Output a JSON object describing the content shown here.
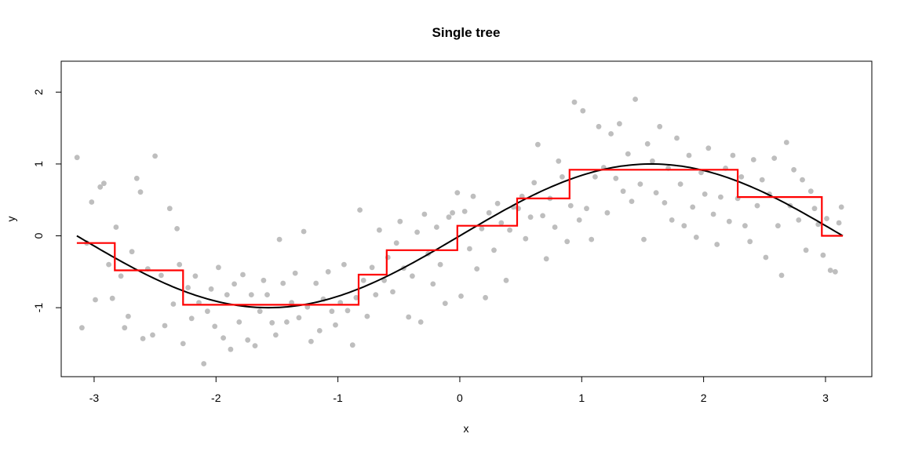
{
  "chart_data": {
    "type": "scatter",
    "title": "Single tree",
    "xlabel": "x",
    "ylabel": "y",
    "xlim": [
      -3.27,
      3.38
    ],
    "ylim": [
      -1.96,
      2.43
    ],
    "x_ticks": [
      -3,
      -2,
      -1,
      0,
      1,
      2,
      3
    ],
    "y_ticks": [
      -1,
      0,
      1,
      2
    ],
    "x_tick_labels": [
      "-3",
      "-2",
      "-1",
      "0",
      "1",
      "2",
      "3"
    ],
    "y_tick_labels": [
      "-1",
      "0",
      "1",
      "2"
    ],
    "grid": false,
    "legend": "none",
    "colors": {
      "points": "#bebebe",
      "true_function": "#000000",
      "tree_fit": "#ff0000"
    },
    "true_function": {
      "name": "",
      "type": "line",
      "expression": "sin(x)",
      "x_range": [
        -3.1416,
        3.1416
      ]
    },
    "tree_fit": {
      "type": "step",
      "breaks": [
        -3.1416,
        -2.83,
        -2.27,
        -0.83,
        -0.6,
        -0.02,
        0.47,
        0.9,
        2.28,
        2.97,
        3.1416
      ],
      "levels": [
        -0.1,
        -0.48,
        -0.96,
        -0.54,
        -0.2,
        0.14,
        0.52,
        0.92,
        0.54,
        0.0
      ]
    },
    "points": [
      [
        -3.14,
        1.09
      ],
      [
        -3.1,
        -1.28
      ],
      [
        -3.06,
        -0.1
      ],
      [
        -3.02,
        0.47
      ],
      [
        -2.99,
        -0.89
      ],
      [
        -2.95,
        0.68
      ],
      [
        -2.92,
        0.73
      ],
      [
        -2.88,
        -0.4
      ],
      [
        -2.85,
        -0.87
      ],
      [
        -2.82,
        0.12
      ],
      [
        -2.78,
        -0.56
      ],
      [
        -2.75,
        -1.28
      ],
      [
        -2.72,
        -1.12
      ],
      [
        -2.69,
        -0.22
      ],
      [
        -2.65,
        0.8
      ],
      [
        -2.62,
        0.61
      ],
      [
        -2.6,
        -1.43
      ],
      [
        -2.56,
        -0.46
      ],
      [
        -2.52,
        -1.38
      ],
      [
        -2.5,
        1.11
      ],
      [
        -2.45,
        -0.55
      ],
      [
        -2.42,
        -1.25
      ],
      [
        -2.38,
        0.38
      ],
      [
        -2.35,
        -0.95
      ],
      [
        -2.32,
        0.1
      ],
      [
        -2.3,
        -0.4
      ],
      [
        -2.27,
        -1.5
      ],
      [
        -2.23,
        -0.72
      ],
      [
        -2.2,
        -1.15
      ],
      [
        -2.17,
        -0.56
      ],
      [
        -2.14,
        -0.93
      ],
      [
        -2.1,
        -1.78
      ],
      [
        -2.07,
        -1.05
      ],
      [
        -2.04,
        -0.74
      ],
      [
        -2.01,
        -1.26
      ],
      [
        -1.98,
        -0.44
      ],
      [
        -1.94,
        -1.42
      ],
      [
        -1.91,
        -0.82
      ],
      [
        -1.88,
        -1.58
      ],
      [
        -1.85,
        -0.67
      ],
      [
        -1.81,
        -1.2
      ],
      [
        -1.78,
        -0.54
      ],
      [
        -1.74,
        -1.45
      ],
      [
        -1.71,
        -0.82
      ],
      [
        -1.68,
        -1.53
      ],
      [
        -1.64,
        -1.05
      ],
      [
        -1.61,
        -0.62
      ],
      [
        -1.58,
        -0.82
      ],
      [
        -1.54,
        -1.21
      ],
      [
        -1.51,
        -1.38
      ],
      [
        -1.48,
        -0.05
      ],
      [
        -1.45,
        -0.66
      ],
      [
        -1.42,
        -1.2
      ],
      [
        -1.38,
        -0.93
      ],
      [
        -1.35,
        -0.52
      ],
      [
        -1.32,
        -1.14
      ],
      [
        -1.28,
        0.06
      ],
      [
        -1.25,
        -0.99
      ],
      [
        -1.22,
        -1.47
      ],
      [
        -1.18,
        -0.66
      ],
      [
        -1.15,
        -1.32
      ],
      [
        -1.12,
        -0.88
      ],
      [
        -1.08,
        -0.5
      ],
      [
        -1.05,
        -1.05
      ],
      [
        -1.02,
        -1.24
      ],
      [
        -0.98,
        -0.93
      ],
      [
        -0.95,
        -0.4
      ],
      [
        -0.92,
        -1.04
      ],
      [
        -0.88,
        -1.52
      ],
      [
        -0.85,
        -0.86
      ],
      [
        -0.82,
        0.36
      ],
      [
        -0.79,
        -0.62
      ],
      [
        -0.76,
        -1.12
      ],
      [
        -0.72,
        -0.44
      ],
      [
        -0.69,
        -0.82
      ],
      [
        -0.66,
        0.08
      ],
      [
        -0.62,
        -0.62
      ],
      [
        -0.59,
        -0.3
      ],
      [
        -0.55,
        -0.78
      ],
      [
        -0.52,
        -0.1
      ],
      [
        -0.49,
        0.2
      ],
      [
        -0.46,
        -0.45
      ],
      [
        -0.42,
        -1.13
      ],
      [
        -0.39,
        -0.56
      ],
      [
        -0.35,
        0.05
      ],
      [
        -0.32,
        -1.2
      ],
      [
        -0.29,
        0.3
      ],
      [
        -0.26,
        -0.25
      ],
      [
        -0.22,
        -0.67
      ],
      [
        -0.19,
        0.12
      ],
      [
        -0.16,
        -0.4
      ],
      [
        -0.12,
        -0.94
      ],
      [
        -0.09,
        0.26
      ],
      [
        -0.06,
        0.32
      ],
      [
        -0.02,
        0.6
      ],
      [
        0.01,
        -0.84
      ],
      [
        0.04,
        0.34
      ],
      [
        0.08,
        -0.18
      ],
      [
        0.11,
        0.55
      ],
      [
        0.14,
        -0.46
      ],
      [
        0.18,
        0.1
      ],
      [
        0.21,
        -0.86
      ],
      [
        0.24,
        0.32
      ],
      [
        0.28,
        -0.2
      ],
      [
        0.31,
        0.45
      ],
      [
        0.34,
        0.18
      ],
      [
        0.38,
        -0.62
      ],
      [
        0.41,
        0.08
      ],
      [
        0.44,
        0.4
      ],
      [
        0.48,
        0.38
      ],
      [
        0.51,
        0.55
      ],
      [
        0.54,
        -0.04
      ],
      [
        0.58,
        0.26
      ],
      [
        0.61,
        0.74
      ],
      [
        0.64,
        1.27
      ],
      [
        0.68,
        0.28
      ],
      [
        0.71,
        -0.32
      ],
      [
        0.74,
        0.52
      ],
      [
        0.78,
        0.12
      ],
      [
        0.81,
        1.04
      ],
      [
        0.84,
        0.82
      ],
      [
        0.88,
        -0.08
      ],
      [
        0.91,
        0.42
      ],
      [
        0.94,
        1.86
      ],
      [
        0.98,
        0.22
      ],
      [
        1.01,
        1.74
      ],
      [
        1.04,
        0.38
      ],
      [
        1.08,
        -0.05
      ],
      [
        1.11,
        0.82
      ],
      [
        1.14,
        1.52
      ],
      [
        1.18,
        0.95
      ],
      [
        1.21,
        0.32
      ],
      [
        1.24,
        1.42
      ],
      [
        1.28,
        0.8
      ],
      [
        1.31,
        1.56
      ],
      [
        1.34,
        0.62
      ],
      [
        1.38,
        1.14
      ],
      [
        1.41,
        0.48
      ],
      [
        1.44,
        1.9
      ],
      [
        1.48,
        0.72
      ],
      [
        1.51,
        -0.05
      ],
      [
        1.54,
        1.28
      ],
      [
        1.58,
        1.04
      ],
      [
        1.61,
        0.6
      ],
      [
        1.64,
        1.52
      ],
      [
        1.68,
        0.46
      ],
      [
        1.71,
        0.94
      ],
      [
        1.74,
        0.22
      ],
      [
        1.78,
        1.36
      ],
      [
        1.81,
        0.72
      ],
      [
        1.84,
        0.14
      ],
      [
        1.88,
        1.12
      ],
      [
        1.91,
        0.4
      ],
      [
        1.94,
        -0.02
      ],
      [
        1.98,
        0.88
      ],
      [
        2.01,
        0.58
      ],
      [
        2.04,
        1.22
      ],
      [
        2.08,
        0.3
      ],
      [
        2.11,
        -0.12
      ],
      [
        2.14,
        0.54
      ],
      [
        2.18,
        0.94
      ],
      [
        2.21,
        0.2
      ],
      [
        2.24,
        1.12
      ],
      [
        2.28,
        0.52
      ],
      [
        2.31,
        0.82
      ],
      [
        2.34,
        0.14
      ],
      [
        2.38,
        -0.08
      ],
      [
        2.41,
        1.06
      ],
      [
        2.44,
        0.42
      ],
      [
        2.48,
        0.78
      ],
      [
        2.51,
        -0.3
      ],
      [
        2.54,
        0.58
      ],
      [
        2.58,
        1.08
      ],
      [
        2.61,
        0.14
      ],
      [
        2.64,
        -0.55
      ],
      [
        2.68,
        1.3
      ],
      [
        2.71,
        0.42
      ],
      [
        2.74,
        0.92
      ],
      [
        2.78,
        0.22
      ],
      [
        2.81,
        0.78
      ],
      [
        2.84,
        -0.2
      ],
      [
        2.88,
        0.62
      ],
      [
        2.91,
        0.38
      ],
      [
        2.94,
        0.16
      ],
      [
        2.98,
        -0.27
      ],
      [
        3.01,
        0.24
      ],
      [
        3.04,
        -0.48
      ],
      [
        3.08,
        -0.5
      ],
      [
        3.11,
        0.18
      ],
      [
        3.13,
        0.4
      ]
    ]
  }
}
